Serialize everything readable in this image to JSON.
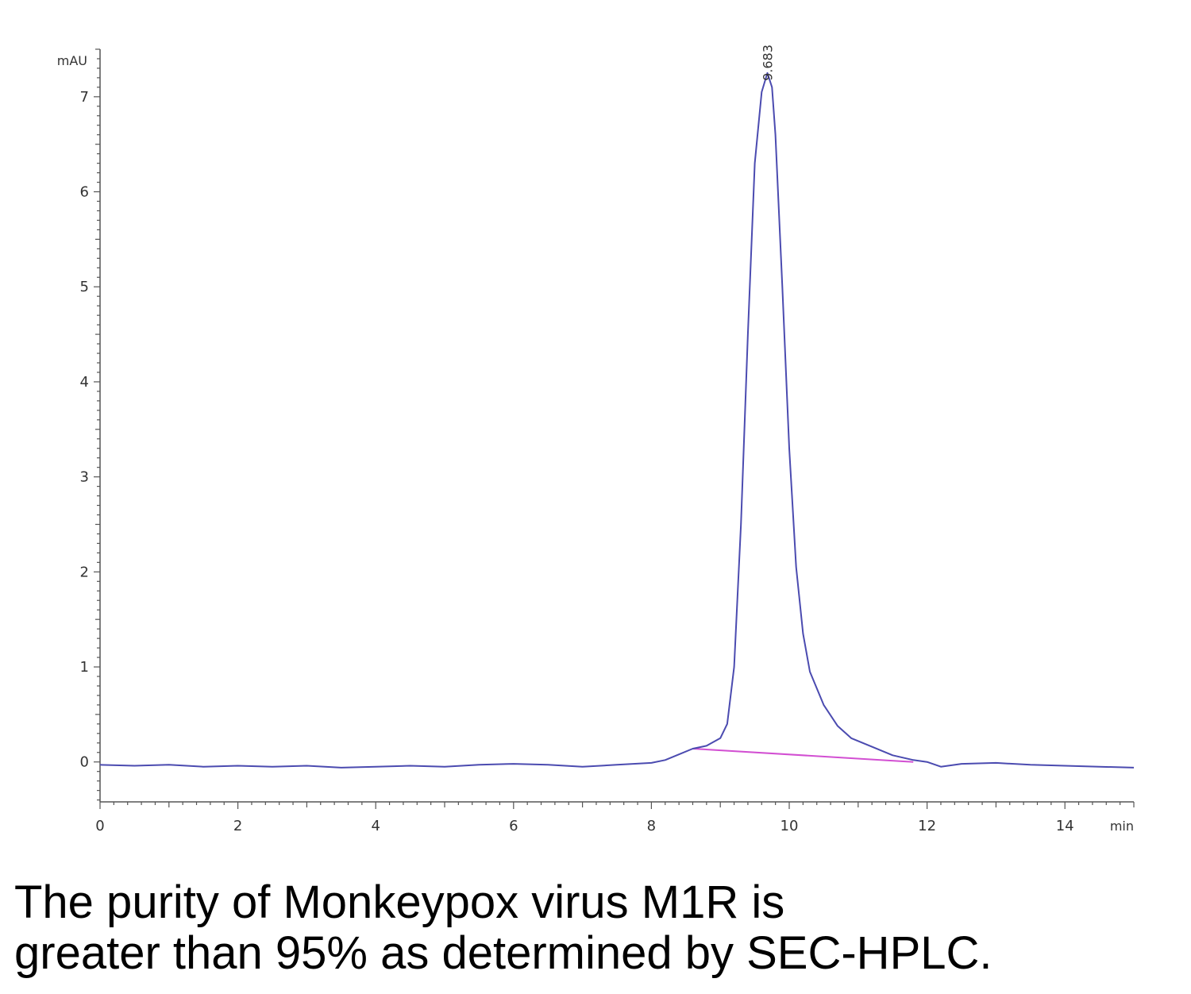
{
  "chart_data": {
    "type": "line",
    "title": "",
    "xlabel": "",
    "ylabel": "",
    "x_unit_label": "min",
    "y_unit_label": "mAU",
    "xlim": [
      0,
      15
    ],
    "ylim": [
      -0.42,
      7.5
    ],
    "x_ticks": [
      0,
      2,
      4,
      6,
      8,
      10,
      12,
      14
    ],
    "y_ticks": [
      0,
      1,
      2,
      3,
      4,
      5,
      6,
      7
    ],
    "grid": false,
    "colors": {
      "trace": "#4b4bb0",
      "baseline": "#d24fd2",
      "axis": "#555555"
    },
    "peak_annotation": {
      "x": 9.683,
      "y": 7.2,
      "label": "9.683"
    },
    "series": [
      {
        "values": [
          [
            0.0,
            -0.03
          ],
          [
            0.5,
            -0.04
          ],
          [
            1.0,
            -0.03
          ],
          [
            1.5,
            -0.05
          ],
          [
            2.0,
            -0.04
          ],
          [
            2.5,
            -0.05
          ],
          [
            3.0,
            -0.04
          ],
          [
            3.5,
            -0.06
          ],
          [
            4.0,
            -0.05
          ],
          [
            4.5,
            -0.04
          ],
          [
            5.0,
            -0.05
          ],
          [
            5.5,
            -0.03
          ],
          [
            6.0,
            -0.02
          ],
          [
            6.5,
            -0.03
          ],
          [
            7.0,
            -0.05
          ],
          [
            7.5,
            -0.03
          ],
          [
            8.0,
            -0.01
          ],
          [
            8.2,
            0.02
          ],
          [
            8.4,
            0.08
          ],
          [
            8.6,
            0.14
          ],
          [
            8.8,
            0.17
          ],
          [
            9.0,
            0.25
          ],
          [
            9.1,
            0.4
          ],
          [
            9.2,
            1.0
          ],
          [
            9.3,
            2.5
          ],
          [
            9.4,
            4.5
          ],
          [
            9.5,
            6.3
          ],
          [
            9.6,
            7.05
          ],
          [
            9.683,
            7.25
          ],
          [
            9.75,
            7.1
          ],
          [
            9.8,
            6.6
          ],
          [
            9.9,
            5.0
          ],
          [
            10.0,
            3.3
          ],
          [
            10.1,
            2.05
          ],
          [
            10.2,
            1.35
          ],
          [
            10.3,
            0.95
          ],
          [
            10.5,
            0.6
          ],
          [
            10.7,
            0.38
          ],
          [
            10.9,
            0.25
          ],
          [
            11.2,
            0.16
          ],
          [
            11.5,
            0.07
          ],
          [
            11.8,
            0.02
          ],
          [
            12.0,
            0.0
          ],
          [
            12.2,
            -0.05
          ],
          [
            12.5,
            -0.02
          ],
          [
            13.0,
            -0.01
          ],
          [
            13.5,
            -0.03
          ],
          [
            14.0,
            -0.04
          ],
          [
            14.5,
            -0.05
          ],
          [
            15.0,
            -0.06
          ]
        ]
      }
    ],
    "integration_baseline": [
      [
        8.6,
        0.14
      ],
      [
        11.8,
        0.0
      ]
    ]
  },
  "caption": {
    "line1": "The purity of Monkeypox virus M1R is",
    "line2": "greater than 95% as determined by SEC-HPLC."
  }
}
